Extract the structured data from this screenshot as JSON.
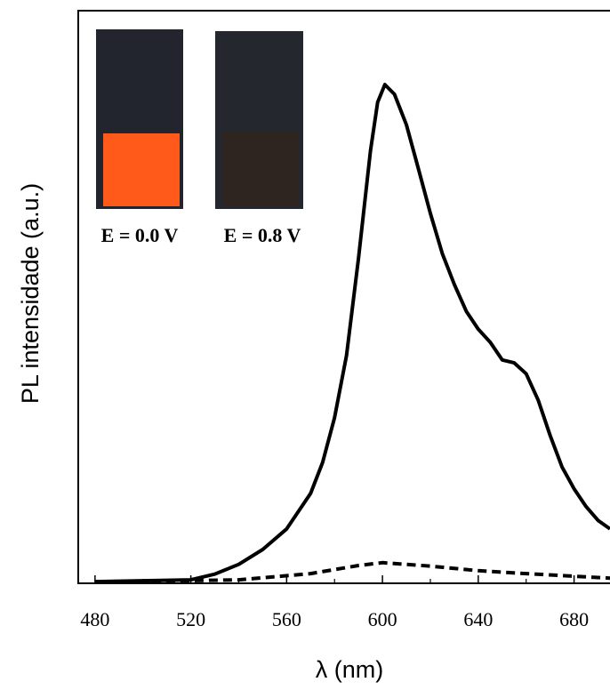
{
  "chart_data": {
    "type": "line",
    "x_label": "λ (nm)",
    "y_label": "PL intensidade (a.u.)",
    "annotations": [
      "E = 0.0 V",
      "E = 0.8 V"
    ],
    "xlim": [
      473,
      695
    ],
    "ylim": [
      0,
      100
    ],
    "xticks": [
      480,
      520,
      560,
      600,
      640,
      680
    ],
    "xminor_ticks": [
      500,
      540,
      580,
      620,
      660
    ],
    "series": [
      {
        "color": "#000000",
        "style": "solid",
        "x": [
          480,
          520,
          530,
          540,
          550,
          560,
          570,
          575,
          580,
          585,
          590,
          595,
          598,
          601,
          605,
          610,
          615,
          620,
          625,
          630,
          635,
          640,
          645,
          650,
          655,
          660,
          665,
          670,
          675,
          680,
          685,
          690,
          695
        ],
        "values": [
          0.3,
          0.6,
          1.6,
          3.3,
          5.9,
          9.5,
          15.7,
          21.1,
          28.9,
          39.8,
          56.8,
          75.5,
          84.0,
          87.1,
          85.4,
          80.1,
          72.4,
          64.6,
          57.6,
          52.2,
          47.5,
          44.4,
          42.1,
          39.0,
          38.5,
          36.6,
          32.0,
          25.8,
          20.3,
          16.5,
          13.4,
          11.0,
          9.5
        ]
      },
      {
        "color": "#000000",
        "style": "dashed",
        "x": [
          480,
          540,
          570,
          590,
          600,
          620,
          640,
          660,
          695
        ],
        "values": [
          0.2,
          0.6,
          1.7,
          3.1,
          3.6,
          3.0,
          2.2,
          1.7,
          0.9
        ]
      }
    ]
  }
}
